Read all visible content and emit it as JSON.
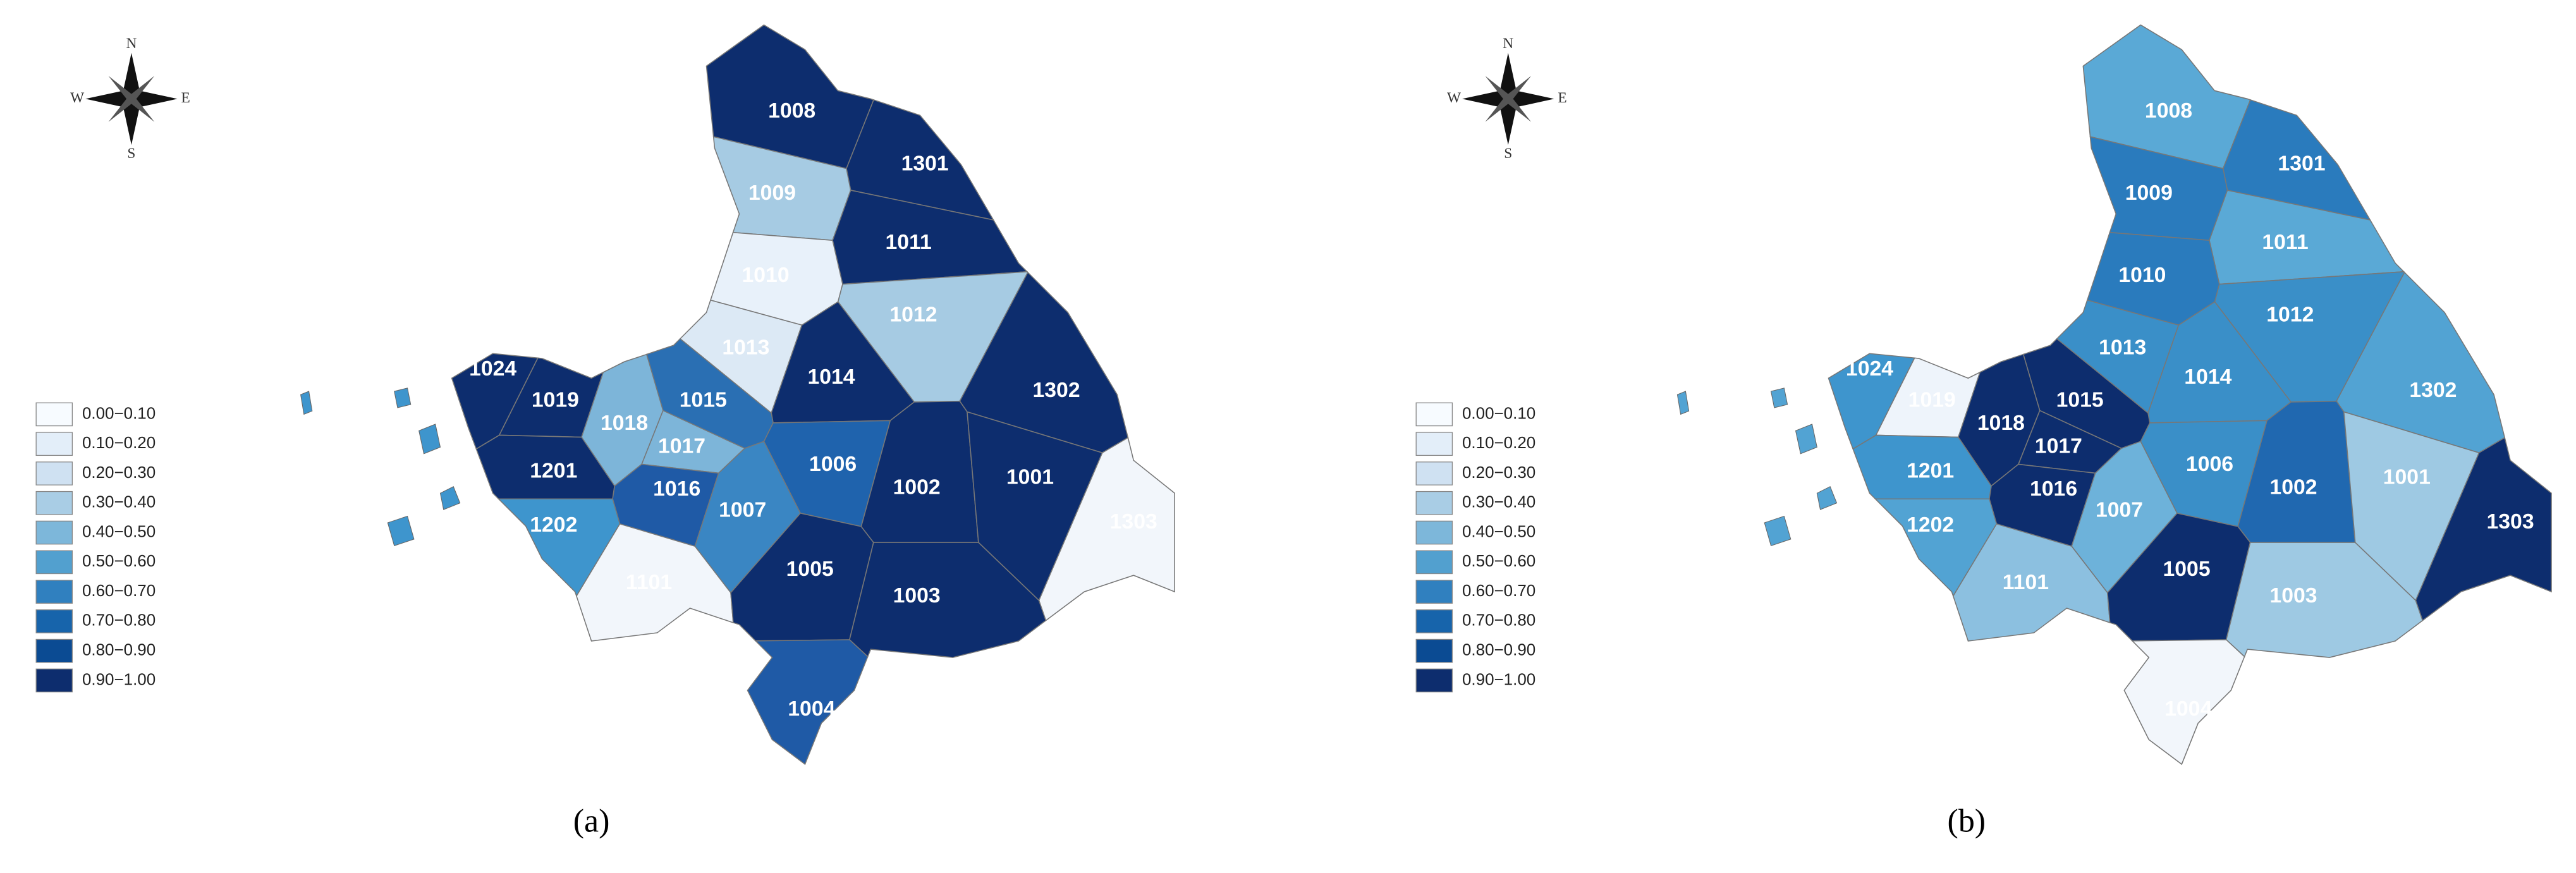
{
  "compass": {
    "n": "N",
    "s": "S",
    "e": "E",
    "w": "W"
  },
  "legend": {
    "items": [
      {
        "label": "0.00−0.10",
        "color": "#f7fbff"
      },
      {
        "label": "0.10−0.20",
        "color": "#e3eef9"
      },
      {
        "label": "0.20−0.30",
        "color": "#cfe1f2"
      },
      {
        "label": "0.30−0.40",
        "color": "#a9cde5"
      },
      {
        "label": "0.40−0.50",
        "color": "#7db7da"
      },
      {
        "label": "0.50−0.60",
        "color": "#52a0cf"
      },
      {
        "label": "0.60−0.70",
        "color": "#3080bf"
      },
      {
        "label": "0.70−0.80",
        "color": "#1764ab"
      },
      {
        "label": "0.80−0.90",
        "color": "#0b4b93"
      },
      {
        "label": "0.90−1.00",
        "color": "#0d2d6e"
      }
    ]
  },
  "panels": [
    {
      "caption": "(a)",
      "regions": [
        {
          "label": "1008",
          "color": "#0d2d6e"
        },
        {
          "label": "1301",
          "color": "#0d2d6e"
        },
        {
          "label": "1009",
          "color": "#a6cbe3"
        },
        {
          "label": "1011",
          "color": "#0d2d6e"
        },
        {
          "label": "1010",
          "color": "#e8f1fa"
        },
        {
          "label": "1012",
          "color": "#a6cbe3"
        },
        {
          "label": "1013",
          "color": "#dce9f5"
        },
        {
          "label": "1014",
          "color": "#0d2d6e"
        },
        {
          "label": "1302",
          "color": "#0d2d6e"
        },
        {
          "label": "1024",
          "color": "#0d2d6e"
        },
        {
          "label": "1019",
          "color": "#0d2d6e"
        },
        {
          "label": "1015",
          "color": "#2a6fb3"
        },
        {
          "label": "1018",
          "color": "#7db5d9"
        },
        {
          "label": "1017",
          "color": "#7db5d9"
        },
        {
          "label": "1201",
          "color": "#0d2d6e"
        },
        {
          "label": "1006",
          "color": "#1f63ad"
        },
        {
          "label": "1002",
          "color": "#0d2d6e"
        },
        {
          "label": "1001",
          "color": "#0d2d6e"
        },
        {
          "label": "1016",
          "color": "#1f5aa6"
        },
        {
          "label": "1007",
          "color": "#3a86c3"
        },
        {
          "label": "1202",
          "color": "#3e95cd"
        },
        {
          "label": "1303",
          "color": "#f2f6fb"
        },
        {
          "label": "1101",
          "color": "#f2f6fb"
        },
        {
          "label": "1005",
          "color": "#0d2d6e"
        },
        {
          "label": "1003",
          "color": "#0d2d6e"
        },
        {
          "label": "1004",
          "color": "#1f5aa6"
        }
      ]
    },
    {
      "caption": "(b)",
      "regions": [
        {
          "label": "1008",
          "color": "#5aa9d6"
        },
        {
          "label": "1301",
          "color": "#2a7bbd"
        },
        {
          "label": "1009",
          "color": "#2a7bbd"
        },
        {
          "label": "1011",
          "color": "#5aa9d6"
        },
        {
          "label": "1010",
          "color": "#2a7bbd"
        },
        {
          "label": "1012",
          "color": "#3a8fc8"
        },
        {
          "label": "1013",
          "color": "#3a8fc8"
        },
        {
          "label": "1014",
          "color": "#3a8fc8"
        },
        {
          "label": "1302",
          "color": "#52a3d3"
        },
        {
          "label": "1024",
          "color": "#3e95cd"
        },
        {
          "label": "1019",
          "color": "#eef4fb"
        },
        {
          "label": "1015",
          "color": "#0d2d6e"
        },
        {
          "label": "1018",
          "color": "#0d2d6e"
        },
        {
          "label": "1017",
          "color": "#0d2d6e"
        },
        {
          "label": "1201",
          "color": "#3e95cd"
        },
        {
          "label": "1006",
          "color": "#3a8fc8"
        },
        {
          "label": "1002",
          "color": "#2068b0"
        },
        {
          "label": "1001",
          "color": "#9ec9e3"
        },
        {
          "label": "1016",
          "color": "#0d2d6e"
        },
        {
          "label": "1007",
          "color": "#6db2da"
        },
        {
          "label": "1202",
          "color": "#52a3d3"
        },
        {
          "label": "1303",
          "color": "#0d2d6e"
        },
        {
          "label": "1101",
          "color": "#8cc0e0"
        },
        {
          "label": "1005",
          "color": "#0d2d6e"
        },
        {
          "label": "1003",
          "color": "#9ec9e3"
        },
        {
          "label": "1004",
          "color": "#f2f6fb"
        }
      ]
    }
  ]
}
